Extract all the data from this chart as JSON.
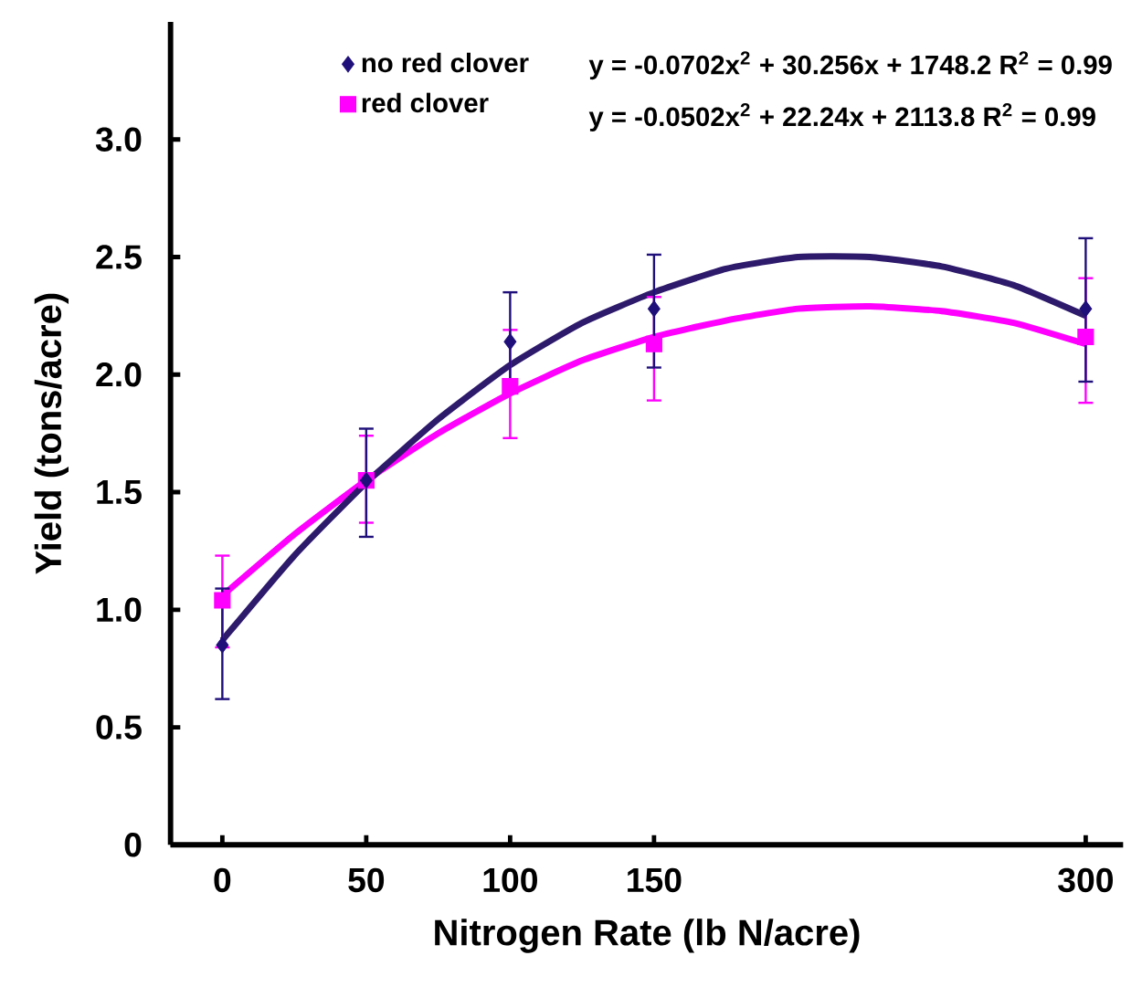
{
  "chart_data": {
    "type": "scatter",
    "xlabel": "Nitrogen Rate (lb N/acre)",
    "ylabel": "Yield (tons/acre)",
    "xlim": [
      -18,
      313
    ],
    "xticks": [
      0,
      50,
      100,
      150,
      300
    ],
    "ylim": [
      0,
      3.5
    ],
    "yticks": [
      0,
      0.5,
      {
        "value": 1,
        "label": "1.0"
      },
      1.5,
      {
        "value": 2,
        "label": "2.0"
      },
      2.5,
      {
        "value": 3,
        "label": "3.0"
      }
    ],
    "grid": false,
    "legend": "top",
    "annotations": [
      "y = -0.0702x$^{2}$ + 30.256x + 1748.2  R$^{2}$ = 0.99",
      "y = -0.0502x$^{2}$ + 22.24x + 2113.8  R$^{2}$ = 0.99"
    ],
    "series": [
      {
        "name": "no red clover",
        "marker": "diamond",
        "color": "#1f0f7a",
        "x": [
          0,
          50,
          100,
          150,
          300
        ],
        "values": [
          0.85,
          1.55,
          2.14,
          2.28,
          2.28
        ],
        "errors": [
          [
            0.62,
            1.09
          ],
          [
            1.31,
            1.77
          ],
          [
            1.93,
            2.35
          ],
          [
            2.03,
            2.51
          ],
          [
            1.97,
            2.58
          ]
        ]
      },
      {
        "name": "red clover",
        "marker": "square",
        "color": "#ff00ff",
        "x": [
          0,
          50,
          100,
          150,
          300
        ],
        "values": [
          1.04,
          1.55,
          1.95,
          2.13,
          2.16
        ],
        "errors": [
          [
            0.84,
            1.23
          ],
          [
            1.37,
            1.74
          ],
          [
            1.73,
            2.19
          ],
          [
            1.89,
            2.33
          ],
          [
            1.88,
            2.41
          ]
        ]
      },
      {
        "type": "line",
        "color": "#2e1a6b",
        "x": [
          0,
          25,
          50,
          75,
          100,
          125,
          150,
          175,
          200,
          225,
          250,
          275,
          300
        ],
        "values": [
          0.87,
          1.23,
          1.54,
          1.81,
          2.04,
          2.22,
          2.35,
          2.45,
          2.5,
          2.5,
          2.46,
          2.38,
          2.25
        ]
      },
      {
        "type": "line",
        "color": "#ff00ff",
        "x": [
          0,
          25,
          50,
          75,
          100,
          125,
          150,
          175,
          200,
          225,
          250,
          275,
          300
        ],
        "values": [
          1.06,
          1.32,
          1.55,
          1.75,
          1.92,
          2.06,
          2.16,
          2.23,
          2.28,
          2.29,
          2.27,
          2.22,
          2.13
        ]
      }
    ]
  }
}
